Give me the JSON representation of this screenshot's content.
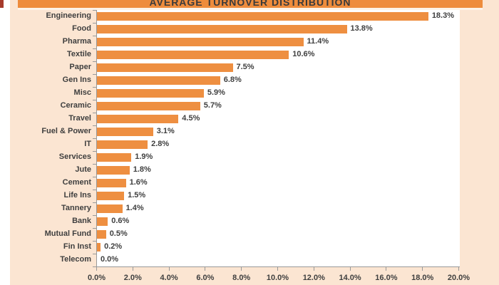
{
  "chart_data": {
    "type": "bar",
    "orientation": "horizontal",
    "title": "AVERAGE TURNOVER DISTRIBUTION",
    "categories": [
      "Engineering",
      "Food",
      "Pharma",
      "Textile",
      "Paper",
      "Gen Ins",
      "Misc",
      "Ceramic",
      "Travel",
      "Fuel & Power",
      "IT",
      "Services",
      "Jute",
      "Cement",
      "Life Ins",
      "Tannery",
      "Bank",
      "Mutual Fund",
      "Fin Inst",
      "Telecom"
    ],
    "values": [
      18.3,
      13.8,
      11.4,
      10.6,
      7.5,
      6.8,
      5.9,
      5.7,
      4.5,
      3.1,
      2.8,
      1.9,
      1.8,
      1.6,
      1.5,
      1.4,
      0.6,
      0.5,
      0.2,
      0.0
    ],
    "value_labels": [
      "18.3%",
      "13.8%",
      "11.4%",
      "10.6%",
      "7.5%",
      "6.8%",
      "5.9%",
      "5.7%",
      "4.5%",
      "3.1%",
      "2.8%",
      "1.9%",
      "1.8%",
      "1.6%",
      "1.5%",
      "1.4%",
      "0.6%",
      "0.5%",
      "0.2%",
      "0.0%"
    ],
    "x_tick_labels": [
      "0.0%",
      "2.0%",
      "4.0%",
      "6.0%",
      "8.0%",
      "10.0%",
      "12.0%",
      "14.0%",
      "16.0%",
      "18.0%",
      "20.0%"
    ],
    "xlim": [
      0,
      20
    ],
    "x_tick_step": 2,
    "grid": "off",
    "legend": "none",
    "data_labels": "outside-end",
    "colors": {
      "bar": "#EE8F41",
      "banner_bg": "#EE8C3C",
      "panel_bg": "#FBE5D2",
      "axis": "#999999",
      "text": "#3F3F3F",
      "accent_red": "#A63A2B",
      "title_text": "#3A3A3A"
    }
  }
}
